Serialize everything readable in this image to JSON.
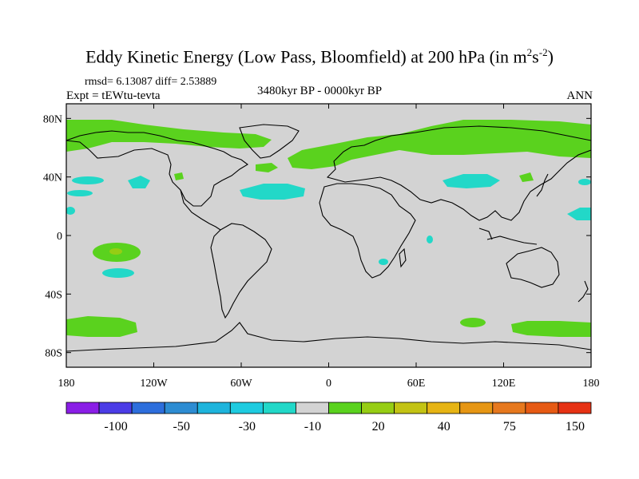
{
  "title": {
    "main": "Eddy Kinetic Energy (Low Pass, Bloomfield) at 200 hPa (in m",
    "sup1": "2",
    "mid": "s",
    "sup2": "-2",
    "end": ")"
  },
  "stats": {
    "rmsd_text": "rmsd= 6.13087 diff= 2.53889"
  },
  "experiment": {
    "label": "Expt = tEWtu-tevta"
  },
  "period": {
    "label": "3480kyr BP - 0000kyr BP"
  },
  "season": {
    "label": "ANN"
  },
  "map": {
    "lat_ticks": [
      "80N",
      "40N",
      "0",
      "40S",
      "80S"
    ],
    "lat_values": [
      80,
      40,
      0,
      -40,
      -80
    ],
    "lon_ticks": [
      "180",
      "120W",
      "60W",
      "0",
      "60E",
      "120E",
      "180"
    ],
    "lon_values": [
      -180,
      -120,
      -60,
      0,
      60,
      120,
      180
    ],
    "land_outline_color": "#000000",
    "background_color": "#d3d3d3"
  },
  "colorbar": {
    "colors": [
      "#8a1ee6",
      "#4b3ce6",
      "#2d6edc",
      "#2d8cd2",
      "#1eb4dc",
      "#1ecbe0",
      "#22d8c8",
      "#d3d3d3",
      "#5ad21e",
      "#96cd14",
      "#c3c314",
      "#e6b414",
      "#e69614",
      "#e6781e",
      "#e65a14",
      "#e63214"
    ],
    "labels": [
      "-100",
      "-50",
      "-30",
      "-10",
      "20",
      "40",
      "75",
      "150"
    ]
  }
}
